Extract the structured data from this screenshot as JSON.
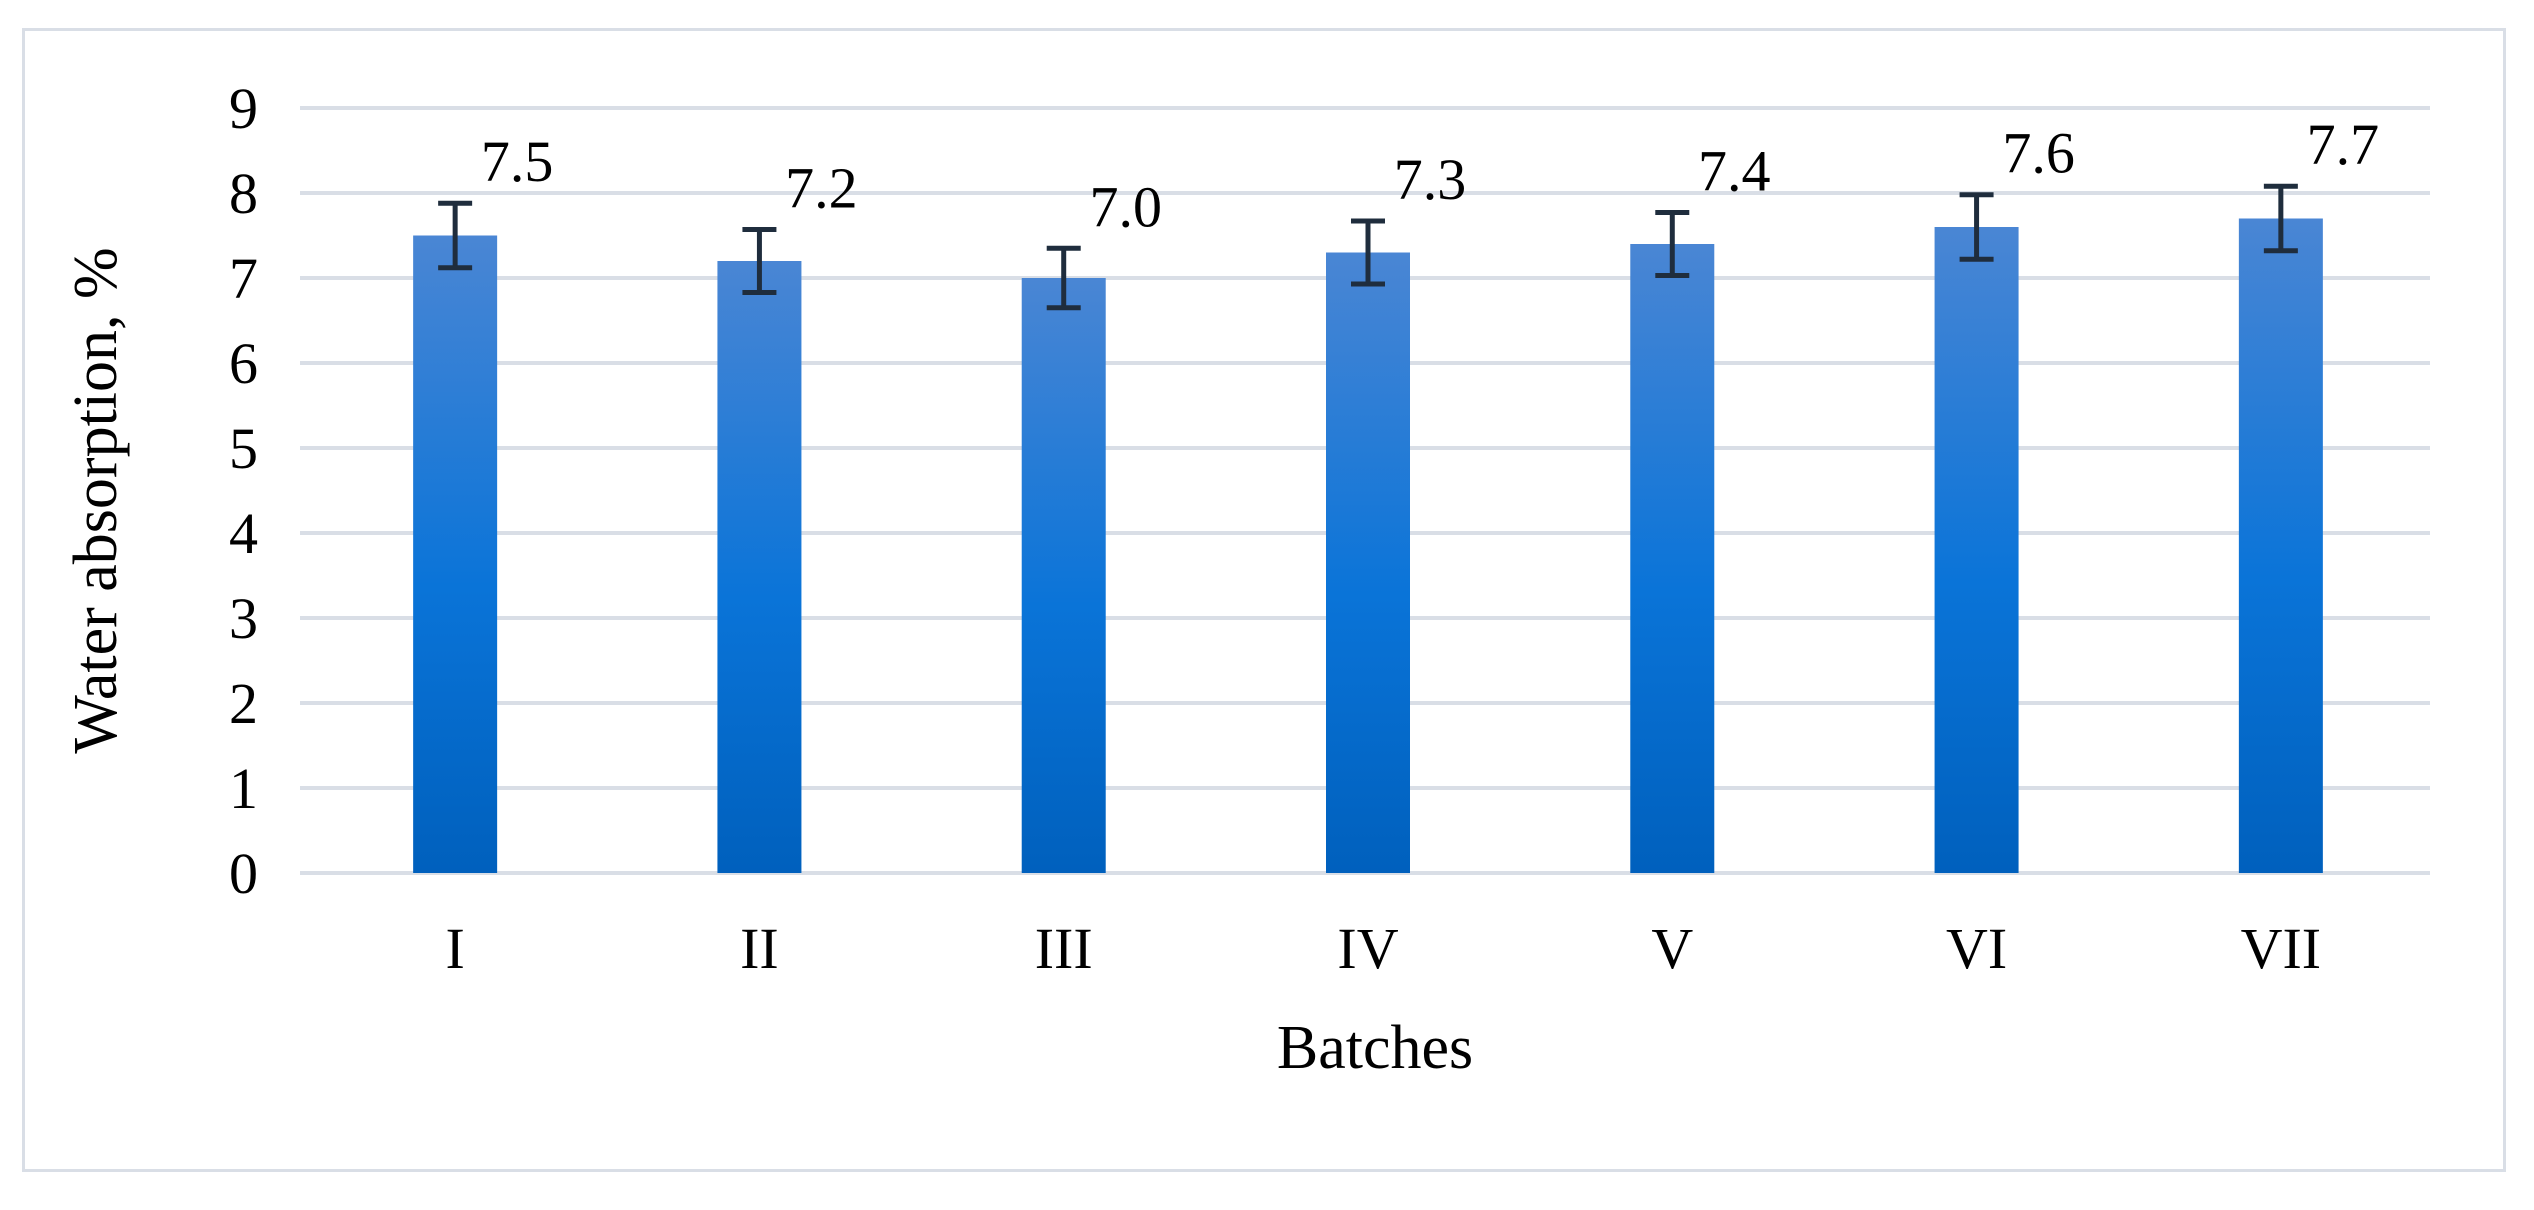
{
  "chart_data": {
    "type": "bar",
    "title": "",
    "xlabel": "Batches",
    "ylabel": "Water absorption, %",
    "categories": [
      "I",
      "II",
      "III",
      "IV",
      "V",
      "VI",
      "VII"
    ],
    "values": [
      7.5,
      7.2,
      7.0,
      7.3,
      7.4,
      7.6,
      7.7
    ],
    "value_labels": [
      "7.5",
      "7.2",
      "7.0",
      "7.3",
      "7.4",
      "7.6",
      "7.7"
    ],
    "error": [
      0.38,
      0.37,
      0.35,
      0.37,
      0.37,
      0.38,
      0.38
    ],
    "ylim": [
      0,
      9
    ],
    "yticks": [
      "0",
      "1",
      "2",
      "3",
      "4",
      "5",
      "6",
      "7",
      "8",
      "9"
    ],
    "grid": true,
    "legend": "none",
    "colors": {
      "bar_top": "#4a86d4",
      "bar_mid": "#0a74d8",
      "bar_bottom": "#0060bd",
      "error_bar": "#1f2d3d",
      "grid": "#d9dee6",
      "frame": "#d9dee6"
    }
  }
}
